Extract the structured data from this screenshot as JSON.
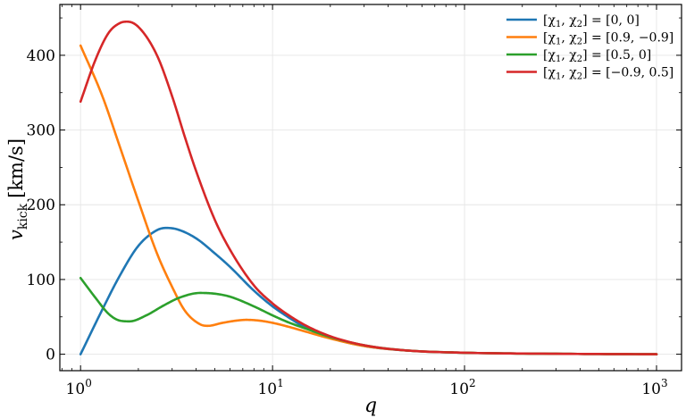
{
  "chart_data": {
    "type": "line",
    "x_scale": "log",
    "xlim": [
      0.78,
      1350
    ],
    "ylim": [
      -22,
      468
    ],
    "grid": true,
    "legend_position": "top-right",
    "xlabel": "q",
    "ylabel_main": "v",
    "ylabel_sub": "kick",
    "ylabel_unit": "[km/s]",
    "x_ticks": [
      {
        "value": 1,
        "base": "10",
        "exp": "0"
      },
      {
        "value": 10,
        "base": "10",
        "exp": "1"
      },
      {
        "value": 100,
        "base": "10",
        "exp": "2"
      },
      {
        "value": 1000,
        "base": "10",
        "exp": "3"
      }
    ],
    "y_ticks": [
      {
        "value": 0,
        "label": "0"
      },
      {
        "value": 100,
        "label": "100"
      },
      {
        "value": 200,
        "label": "200"
      },
      {
        "value": 300,
        "label": "300"
      },
      {
        "value": 400,
        "label": "400"
      }
    ],
    "series": [
      {
        "name": "[χ1, χ2] = [0, 0]",
        "color": "#1f77b4",
        "points": [
          [
            1,
            0
          ],
          [
            1.3,
            60
          ],
          [
            1.6,
            105
          ],
          [
            2.0,
            145
          ],
          [
            2.5,
            166
          ],
          [
            2.8,
            169
          ],
          [
            3.2,
            167
          ],
          [
            4.0,
            155
          ],
          [
            5.0,
            135
          ],
          [
            6.0,
            117
          ],
          [
            8.0,
            85
          ],
          [
            10,
            64
          ],
          [
            12,
            50
          ],
          [
            15,
            35
          ],
          [
            20,
            22
          ],
          [
            30,
            11
          ],
          [
            50,
            5
          ],
          [
            100,
            2
          ],
          [
            300,
            0.6
          ],
          [
            1000,
            0
          ]
        ]
      },
      {
        "name": "[χ1, χ2] = [0.9, −0.9]",
        "color": "#ff7f0e",
        "points": [
          [
            1,
            413
          ],
          [
            1.3,
            345
          ],
          [
            1.6,
            278
          ],
          [
            2.0,
            205
          ],
          [
            2.5,
            135
          ],
          [
            3.0,
            90
          ],
          [
            3.5,
            58
          ],
          [
            4.2,
            40
          ],
          [
            4.6,
            38
          ],
          [
            5.5,
            42
          ],
          [
            6.5,
            45
          ],
          [
            7.3,
            46
          ],
          [
            8.5,
            45
          ],
          [
            10,
            42
          ],
          [
            12,
            37
          ],
          [
            15,
            30
          ],
          [
            20,
            21
          ],
          [
            30,
            11
          ],
          [
            50,
            5
          ],
          [
            100,
            2
          ],
          [
            300,
            0.6
          ],
          [
            1000,
            0
          ]
        ]
      },
      {
        "name": "[χ1, χ2] = [0.5, 0]",
        "color": "#2ca02c",
        "points": [
          [
            1,
            102
          ],
          [
            1.2,
            75
          ],
          [
            1.4,
            54
          ],
          [
            1.6,
            45
          ],
          [
            1.8,
            44
          ],
          [
            2.2,
            52
          ],
          [
            2.7,
            65
          ],
          [
            3.3,
            76
          ],
          [
            4.2,
            82
          ],
          [
            5.0,
            81
          ],
          [
            6.0,
            77
          ],
          [
            8.0,
            64
          ],
          [
            10,
            52
          ],
          [
            12,
            43
          ],
          [
            15,
            34
          ],
          [
            20,
            23
          ],
          [
            30,
            12
          ],
          [
            50,
            5
          ],
          [
            100,
            2
          ],
          [
            300,
            0.6
          ],
          [
            1000,
            0
          ]
        ]
      },
      {
        "name": "[χ1, χ2] = [−0.9, 0.5]",
        "color": "#d62728",
        "points": [
          [
            1,
            338
          ],
          [
            1.2,
            395
          ],
          [
            1.4,
            430
          ],
          [
            1.6,
            443
          ],
          [
            1.75,
            445
          ],
          [
            2.0,
            438
          ],
          [
            2.5,
            400
          ],
          [
            3.0,
            345
          ],
          [
            3.5,
            290
          ],
          [
            4.0,
            245
          ],
          [
            5.0,
            180
          ],
          [
            6.0,
            140
          ],
          [
            8.0,
            92
          ],
          [
            10,
            68
          ],
          [
            12,
            53
          ],
          [
            15,
            38
          ],
          [
            20,
            24
          ],
          [
            30,
            12
          ],
          [
            50,
            5
          ],
          [
            100,
            2
          ],
          [
            300,
            0.6
          ],
          [
            1000,
            0
          ]
        ]
      }
    ]
  },
  "legend": [
    {
      "prefix": "[χ",
      "s1": "1",
      "mid": ", χ",
      "s2": "2",
      "suffix": "] = [0, 0]"
    },
    {
      "prefix": "[χ",
      "s1": "1",
      "mid": ", χ",
      "s2": "2",
      "suffix": "] = [0.9, −0.9]"
    },
    {
      "prefix": "[χ",
      "s1": "1",
      "mid": ", χ",
      "s2": "2",
      "suffix": "] = [0.5, 0]"
    },
    {
      "prefix": "[χ",
      "s1": "1",
      "mid": ", χ",
      "s2": "2",
      "suffix": "] = [−0.9, 0.5]"
    }
  ]
}
